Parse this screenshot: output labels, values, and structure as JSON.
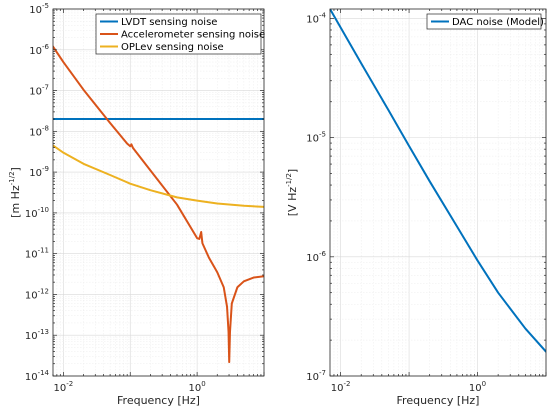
{
  "chart_data": [
    {
      "type": "line",
      "xscale": "log",
      "yscale": "log",
      "xlim": [
        0.007,
        10
      ],
      "ylim": [
        1e-14,
        1e-05
      ],
      "xlabel": "Frequency [Hz]",
      "ylabel": "[m Hz^-1/2]",
      "ylabel_base": "[m Hz",
      "ylabel_exp": "-1/2",
      "ylabel_close": "]",
      "grid": true,
      "legend_position": "top-right",
      "x_ticks": [
        {
          "base": "10",
          "exp": "-2",
          "value": 0.01
        },
        {
          "base": "10",
          "exp": "0",
          "value": 1
        }
      ],
      "y_ticks": [
        {
          "base": "10",
          "exp": "-14",
          "value": 1e-14
        },
        {
          "base": "10",
          "exp": "-13",
          "value": 1e-13
        },
        {
          "base": "10",
          "exp": "-12",
          "value": 1e-12
        },
        {
          "base": "10",
          "exp": "-11",
          "value": 1e-11
        },
        {
          "base": "10",
          "exp": "-10",
          "value": 1e-10
        },
        {
          "base": "10",
          "exp": "-9",
          "value": 1e-09
        },
        {
          "base": "10",
          "exp": "-8",
          "value": 1e-08
        },
        {
          "base": "10",
          "exp": "-7",
          "value": 1e-07
        },
        {
          "base": "10",
          "exp": "-6",
          "value": 1e-06
        },
        {
          "base": "10",
          "exp": "-5",
          "value": 1e-05
        }
      ],
      "series": [
        {
          "name": "LVDT sensing noise",
          "color": "#0072BD",
          "points": [
            [
              0.007,
              2e-08
            ],
            [
              10,
              2e-08
            ]
          ]
        },
        {
          "name": "Accelerometer sensing noise",
          "color": "#D95319",
          "points": [
            [
              0.007,
              1.2e-06
            ],
            [
              0.01,
              5e-07
            ],
            [
              0.02,
              1.05e-07
            ],
            [
              0.05,
              1.6e-08
            ],
            [
              0.09,
              5e-09
            ],
            [
              0.1,
              4.3e-09
            ],
            [
              0.104,
              4.8e-09
            ],
            [
              0.11,
              3.9e-09
            ],
            [
              0.2,
              1.1e-09
            ],
            [
              0.5,
              1.6e-10
            ],
            [
              1.0,
              2.4e-11
            ],
            [
              1.08,
              2.3e-11
            ],
            [
              1.15,
              3.4e-11
            ],
            [
              1.2,
              1.8e-11
            ],
            [
              1.5,
              8e-12
            ],
            [
              2.0,
              3.5e-12
            ],
            [
              2.5,
              1.5e-12
            ],
            [
              2.8,
              5e-13
            ],
            [
              2.95,
              1.2e-13
            ],
            [
              3.02,
              2.2e-14
            ],
            [
              3.1,
              1.2e-13
            ],
            [
              3.3,
              6e-13
            ],
            [
              4.0,
              1.5e-12
            ],
            [
              5.0,
              2.1e-12
            ],
            [
              7.0,
              2.6e-12
            ],
            [
              10,
              2.8e-12
            ]
          ]
        },
        {
          "name": "OPLev sensing noise",
          "color": "#EDB120",
          "points": [
            [
              0.007,
              4.5e-09
            ],
            [
              0.01,
              3e-09
            ],
            [
              0.02,
              1.6e-09
            ],
            [
              0.05,
              8.5e-10
            ],
            [
              0.1,
              5.2e-10
            ],
            [
              0.2,
              3.6e-10
            ],
            [
              0.5,
              2.4e-10
            ],
            [
              1.0,
              2e-10
            ],
            [
              2.0,
              1.7e-10
            ],
            [
              5.0,
              1.5e-10
            ],
            [
              10,
              1.4e-10
            ]
          ]
        }
      ]
    },
    {
      "type": "line",
      "xscale": "log",
      "yscale": "log",
      "xlim": [
        0.007,
        10
      ],
      "ylim": [
        1e-07,
        0.00012
      ],
      "xlabel": "Frequency [Hz]",
      "ylabel": "[V Hz^-1/2]",
      "ylabel_base": "[V Hz",
      "ylabel_exp": "-1/2",
      "ylabel_close": "]",
      "grid": true,
      "legend_position": "top-right",
      "x_ticks": [
        {
          "base": "10",
          "exp": "-2",
          "value": 0.01
        },
        {
          "base": "10",
          "exp": "0",
          "value": 1
        }
      ],
      "y_ticks": [
        {
          "base": "10",
          "exp": "-7",
          "value": 1e-07
        },
        {
          "base": "10",
          "exp": "-6",
          "value": 1e-06
        },
        {
          "base": "10",
          "exp": "-5",
          "value": 1e-05
        },
        {
          "base": "10",
          "exp": "-4",
          "value": 0.0001
        }
      ],
      "series": [
        {
          "name": "DAC noise (Model)",
          "color": "#0072BD",
          "points": [
            [
              0.007,
              0.00012
            ],
            [
              0.01,
              8.4e-05
            ],
            [
              0.02,
              4.2e-05
            ],
            [
              0.05,
              1.7e-05
            ],
            [
              0.1,
              8.5e-06
            ],
            [
              0.2,
              4.3e-06
            ],
            [
              0.5,
              1.8e-06
            ],
            [
              1.0,
              9.3e-07
            ],
            [
              2.0,
              5e-07
            ],
            [
              5.0,
              2.5e-07
            ],
            [
              10,
              1.6e-07
            ]
          ]
        }
      ]
    }
  ]
}
